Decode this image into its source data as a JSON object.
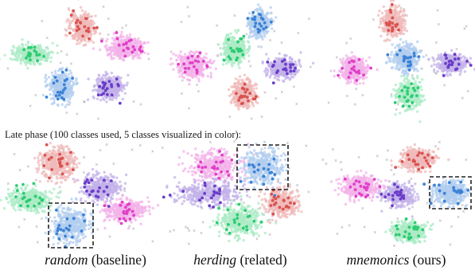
{
  "phase_label": "Late phase (100 classes used, 5 classes visualized in color):",
  "methods": [
    {
      "name": "random",
      "note": "(baseline)"
    },
    {
      "name": "herding",
      "note": "(related)"
    },
    {
      "name": "mnemonics",
      "note": "(ours)"
    }
  ],
  "colors": {
    "green": "#2ecc71",
    "red": "#d9534f",
    "pink": "#e040c8",
    "blue": "#3b82d6",
    "purple": "#6a3dc8",
    "gray_marker": "#8a8a8a",
    "box_border": "#222222"
  },
  "chart_data": [
    {
      "type": "scatter",
      "phase": "early",
      "method": "random",
      "clusters": [
        {
          "color": "green",
          "center": [
            40,
            68
          ],
          "spread": [
            26,
            12
          ]
        },
        {
          "color": "red",
          "center": [
            103,
            35
          ],
          "spread": [
            16,
            20
          ]
        },
        {
          "color": "pink",
          "center": [
            158,
            60
          ],
          "spread": [
            24,
            14
          ]
        },
        {
          "color": "blue",
          "center": [
            76,
            108
          ],
          "spread": [
            16,
            20
          ]
        },
        {
          "color": "purple",
          "center": [
            138,
            110
          ],
          "spread": [
            18,
            16
          ]
        }
      ]
    },
    {
      "type": "scatter",
      "phase": "early",
      "method": "herding",
      "clusters": [
        {
          "color": "blue",
          "center": [
            326,
            30
          ],
          "spread": [
            14,
            18
          ]
        },
        {
          "color": "green",
          "center": [
            295,
            63
          ],
          "spread": [
            16,
            18
          ]
        },
        {
          "color": "pink",
          "center": [
            242,
            82
          ],
          "spread": [
            22,
            16
          ]
        },
        {
          "color": "purple",
          "center": [
            355,
            85
          ],
          "spread": [
            20,
            14
          ]
        },
        {
          "color": "red",
          "center": [
            306,
            118
          ],
          "spread": [
            16,
            18
          ]
        }
      ]
    },
    {
      "type": "scatter",
      "phase": "early",
      "method": "mnemonics",
      "clusters": [
        {
          "color": "red",
          "center": [
            494,
            28
          ],
          "spread": [
            16,
            18
          ]
        },
        {
          "color": "blue",
          "center": [
            510,
            72
          ],
          "spread": [
            18,
            18
          ]
        },
        {
          "color": "pink",
          "center": [
            445,
            87
          ],
          "spread": [
            18,
            16
          ]
        },
        {
          "color": "purple",
          "center": [
            567,
            80
          ],
          "spread": [
            20,
            13
          ]
        },
        {
          "color": "green",
          "center": [
            514,
            118
          ],
          "spread": [
            16,
            18
          ]
        }
      ]
    },
    {
      "type": "scatter",
      "phase": "late",
      "method": "random",
      "clusters": [
        {
          "color": "red",
          "center": [
            73,
            205
          ],
          "spread": [
            24,
            22
          ]
        },
        {
          "color": "green",
          "center": [
            38,
            250
          ],
          "spread": [
            28,
            16
          ]
        },
        {
          "color": "purple",
          "center": [
            128,
            237
          ],
          "spread": [
            24,
            18
          ]
        },
        {
          "color": "pink",
          "center": [
            157,
            264
          ],
          "spread": [
            28,
            14
          ]
        },
        {
          "color": "blue",
          "center": [
            89,
            283
          ],
          "spread": [
            24,
            24
          ]
        }
      ],
      "highlight_box_cluster": "blue"
    },
    {
      "type": "scatter",
      "phase": "late",
      "method": "herding",
      "clusters": [
        {
          "color": "pink",
          "center": [
            270,
            208
          ],
          "spread": [
            36,
            20
          ]
        },
        {
          "color": "purple",
          "center": [
            262,
            242
          ],
          "spread": [
            42,
            16
          ]
        },
        {
          "color": "blue",
          "center": [
            330,
            210
          ],
          "spread": [
            28,
            24
          ]
        },
        {
          "color": "red",
          "center": [
            353,
            255
          ],
          "spread": [
            24,
            18
          ]
        },
        {
          "color": "green",
          "center": [
            302,
            277
          ],
          "spread": [
            28,
            20
          ]
        }
      ],
      "highlight_box_cluster": "blue"
    },
    {
      "type": "scatter",
      "phase": "late",
      "method": "mnemonics",
      "clusters": [
        {
          "color": "red",
          "center": [
            525,
            200
          ],
          "spread": [
            24,
            14
          ]
        },
        {
          "color": "pink",
          "center": [
            453,
            235
          ],
          "spread": [
            26,
            16
          ]
        },
        {
          "color": "purple",
          "center": [
            501,
            245
          ],
          "spread": [
            20,
            14
          ]
        },
        {
          "color": "blue",
          "center": [
            566,
            242
          ],
          "spread": [
            22,
            16
          ]
        },
        {
          "color": "green",
          "center": [
            514,
            290
          ],
          "spread": [
            22,
            14
          ]
        }
      ],
      "highlight_box_cluster": "blue"
    }
  ]
}
